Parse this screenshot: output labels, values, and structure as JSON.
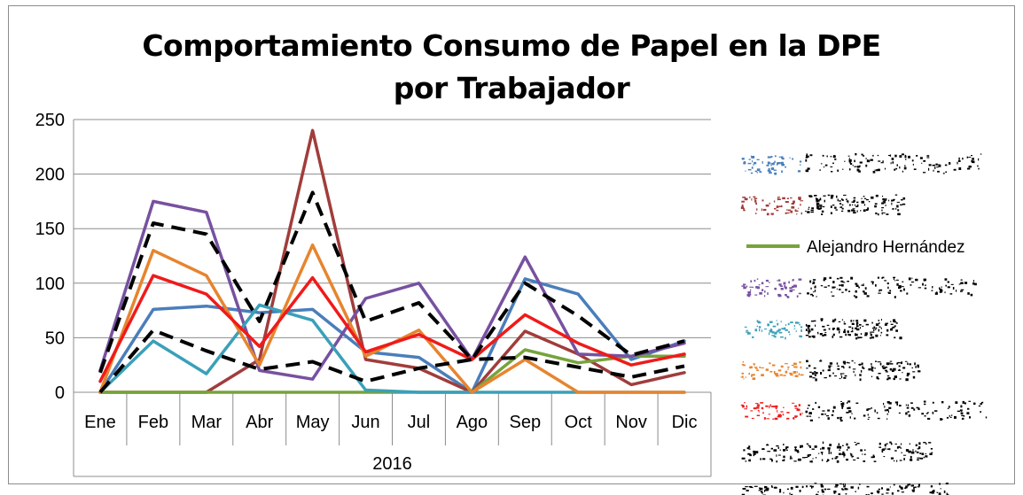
{
  "chart_data": {
    "type": "line",
    "title_lines": [
      "Comportamiento Consumo de Papel en la DPE",
      "por Trabajador"
    ],
    "xlabel": "2016",
    "ylabel": "",
    "categories": [
      "Ene",
      "Feb",
      "Mar",
      "Abr",
      "May",
      "Jun",
      "Jul",
      "Ago",
      "Sep",
      "Oct",
      "Nov",
      "Dic"
    ],
    "ylim": [
      0,
      250
    ],
    "yticks": [
      0,
      50,
      100,
      150,
      200,
      250
    ],
    "grid": true,
    "legend_position": "right",
    "series": [
      {
        "name": "",
        "color": "#4a7ebb",
        "dash": false,
        "values": [
          0,
          76,
          79,
          73,
          76,
          37,
          32,
          0,
          104,
          90,
          30,
          47
        ]
      },
      {
        "name": "",
        "color": "#a03d3b",
        "dash": false,
        "values": [
          0,
          0,
          0,
          30,
          240,
          30,
          22,
          0,
          56,
          35,
          7,
          18
        ]
      },
      {
        "name": "Alejandro Hernández",
        "color": "#77a33b",
        "dash": false,
        "values": [
          0,
          0,
          0,
          0,
          0,
          0,
          0,
          0,
          39,
          27,
          33,
          33
        ]
      },
      {
        "name": "",
        "color": "#7751a0",
        "dash": false,
        "values": [
          20,
          175,
          165,
          20,
          12,
          86,
          100,
          30,
          124,
          35,
          33,
          45
        ]
      },
      {
        "name": "",
        "color": "#3aa0b8",
        "dash": false,
        "values": [
          0,
          47,
          17,
          80,
          66,
          2,
          0,
          0,
          0,
          0,
          0,
          0
        ]
      },
      {
        "name": "",
        "color": "#e6852f",
        "dash": false,
        "values": [
          0,
          130,
          107,
          25,
          135,
          33,
          57,
          0,
          30,
          0,
          0,
          0
        ]
      },
      {
        "name": "",
        "color": "#f01a1a",
        "dash": false,
        "values": [
          10,
          107,
          90,
          42,
          105,
          37,
          53,
          30,
          71,
          45,
          25,
          35
        ]
      },
      {
        "name": "",
        "color": "#000000",
        "dash": true,
        "values": [
          18,
          155,
          145,
          65,
          183,
          65,
          82,
          30,
          100,
          70,
          34,
          47
        ]
      },
      {
        "name": "",
        "color": "#000000",
        "dash": true,
        "values": [
          0,
          57,
          38,
          21,
          28,
          10,
          22,
          30,
          32,
          23,
          14,
          24
        ]
      }
    ]
  }
}
